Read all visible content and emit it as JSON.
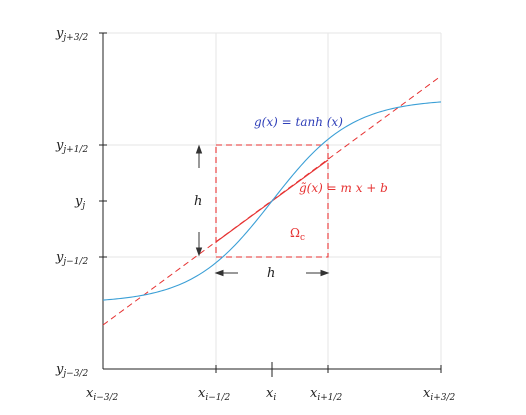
{
  "y_ticks": [
    {
      "id": "y-jp32",
      "base": "y",
      "sub": "j+3/2"
    },
    {
      "id": "y-jp12",
      "base": "y",
      "sub": "j+1/2"
    },
    {
      "id": "y-j",
      "base": "y",
      "sub": "j"
    },
    {
      "id": "y-jm12",
      "base": "y",
      "sub": "j−1/2"
    },
    {
      "id": "y-jm32",
      "base": "y",
      "sub": "j−3/2"
    }
  ],
  "x_ticks": [
    {
      "id": "x-im32",
      "base": "x",
      "sub": "i−3/2"
    },
    {
      "id": "x-im12",
      "base": "x",
      "sub": "i−1/2"
    },
    {
      "id": "x-i",
      "base": "x",
      "sub": "i"
    },
    {
      "id": "x-ip12",
      "base": "x",
      "sub": "i+1/2"
    },
    {
      "id": "x-ip32",
      "base": "x",
      "sub": "i+3/2"
    }
  ],
  "labels": {
    "g_curve": "g(x) = tanh (x)",
    "g_tilde": "g̃(x) = m x + b",
    "omega": "Ω",
    "omega_sub": "c",
    "h_vertical": "h",
    "h_horizontal": "h"
  },
  "colors": {
    "curve": "#3b9fd6",
    "curve_label": "#2f3fb8",
    "line": "#e63232",
    "axis": "#222222",
    "grid": "#e6e6e6"
  }
}
